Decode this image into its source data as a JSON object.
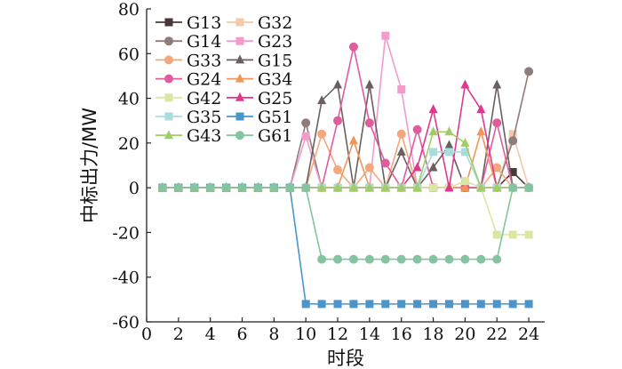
{
  "chart_data": {
    "type": "line",
    "title": "",
    "xlabel": "时段",
    "ylabel": "中标出力/MW",
    "xlim": [
      0,
      25
    ],
    "ylim": [
      -60,
      80
    ],
    "x_ticks": [
      0,
      2,
      4,
      6,
      8,
      10,
      12,
      14,
      16,
      18,
      20,
      22,
      24
    ],
    "y_ticks": [
      -60,
      -40,
      -20,
      0,
      20,
      40,
      60,
      80
    ],
    "legend_position": "top-left",
    "x": [
      1,
      2,
      3,
      4,
      5,
      6,
      7,
      8,
      9,
      10,
      11,
      12,
      13,
      14,
      15,
      16,
      17,
      18,
      19,
      20,
      21,
      22,
      23,
      24
    ],
    "series": [
      {
        "name": "G13",
        "color": "#4a3838",
        "marker": "square",
        "values": [
          0,
          0,
          0,
          0,
          0,
          0,
          0,
          0,
          0,
          0,
          0,
          0,
          0,
          0,
          0,
          0,
          0,
          0,
          0,
          0,
          0,
          0,
          7,
          0
        ]
      },
      {
        "name": "G32",
        "color": "#f4c8a8",
        "marker": "square",
        "values": [
          0,
          0,
          0,
          0,
          0,
          0,
          0,
          0,
          0,
          0,
          0,
          0,
          0,
          0,
          0,
          0,
          0,
          0,
          0,
          0,
          0,
          0,
          24,
          0
        ]
      },
      {
        "name": "G14",
        "color": "#8e7b7b",
        "marker": "circle",
        "values": [
          0,
          0,
          0,
          0,
          0,
          0,
          0,
          0,
          0,
          29,
          0,
          0,
          0,
          0,
          0,
          0,
          0,
          0,
          0,
          0,
          0,
          0,
          21,
          52
        ]
      },
      {
        "name": "G23",
        "color": "#f39ccb",
        "marker": "square",
        "values": [
          0,
          0,
          0,
          0,
          0,
          0,
          0,
          0,
          0,
          23,
          0,
          0,
          0,
          0,
          68,
          44,
          0,
          0,
          0,
          0,
          0,
          0,
          0,
          0
        ]
      },
      {
        "name": "G33",
        "color": "#f4a77a",
        "marker": "circle",
        "values": [
          0,
          0,
          0,
          0,
          0,
          0,
          0,
          0,
          0,
          0,
          24,
          8,
          0,
          9,
          0,
          24,
          0,
          0,
          0,
          0,
          0,
          9,
          0,
          0
        ]
      },
      {
        "name": "G15",
        "color": "#6a6060",
        "marker": "triangle",
        "values": [
          0,
          0,
          0,
          0,
          0,
          0,
          0,
          0,
          0,
          0,
          39,
          46,
          0,
          46,
          0,
          16,
          0,
          9,
          19,
          0,
          0,
          46,
          0,
          0
        ]
      },
      {
        "name": "G24",
        "color": "#e05c9c",
        "marker": "circle",
        "values": [
          0,
          0,
          0,
          0,
          0,
          0,
          0,
          0,
          0,
          0,
          0,
          30,
          63,
          29,
          11,
          0,
          26,
          0,
          0,
          0,
          0,
          29,
          0,
          0
        ]
      },
      {
        "name": "G34",
        "color": "#f0955a",
        "marker": "triangle",
        "values": [
          0,
          0,
          0,
          0,
          0,
          0,
          0,
          0,
          0,
          0,
          0,
          0,
          21,
          0,
          0,
          0,
          0,
          0,
          0,
          0,
          25,
          0,
          0,
          0
        ]
      },
      {
        "name": "G42",
        "color": "#d8e8a0",
        "marker": "square",
        "values": [
          0,
          0,
          0,
          0,
          0,
          0,
          0,
          0,
          0,
          0,
          0,
          0,
          0,
          0,
          0,
          0,
          0,
          0,
          0,
          3,
          0,
          -21,
          -21,
          -21
        ]
      },
      {
        "name": "G25",
        "color": "#e0398c",
        "marker": "triangle",
        "values": [
          0,
          0,
          0,
          0,
          0,
          0,
          0,
          0,
          0,
          0,
          0,
          0,
          0,
          0,
          0,
          0,
          9,
          35,
          0,
          46,
          35,
          0,
          0,
          0
        ]
      },
      {
        "name": "G35",
        "color": "#a8dde0",
        "marker": "square",
        "values": [
          0,
          0,
          0,
          0,
          0,
          0,
          0,
          0,
          0,
          0,
          0,
          0,
          0,
          0,
          0,
          0,
          0,
          16,
          16,
          16,
          0,
          0,
          0,
          0
        ]
      },
      {
        "name": "G51",
        "color": "#4a95cc",
        "marker": "square",
        "values": [
          0,
          0,
          0,
          0,
          0,
          0,
          0,
          0,
          0,
          -52,
          -52,
          -52,
          -52,
          -52,
          -52,
          -52,
          -52,
          -52,
          -52,
          -52,
          -52,
          -52,
          -52,
          -52
        ]
      },
      {
        "name": "G43",
        "color": "#a2cc68",
        "marker": "triangle",
        "values": [
          0,
          0,
          0,
          0,
          0,
          0,
          0,
          0,
          0,
          0,
          0,
          0,
          0,
          0,
          0,
          0,
          0,
          25,
          25,
          20,
          0,
          0,
          0,
          0
        ]
      },
      {
        "name": "G61",
        "color": "#84c4a0",
        "marker": "circle",
        "values": [
          0,
          0,
          0,
          0,
          0,
          0,
          0,
          0,
          0,
          0,
          -32,
          -32,
          -32,
          -32,
          -32,
          -32,
          -32,
          -32,
          -32,
          -32,
          -32,
          -32,
          0,
          0
        ]
      }
    ]
  }
}
